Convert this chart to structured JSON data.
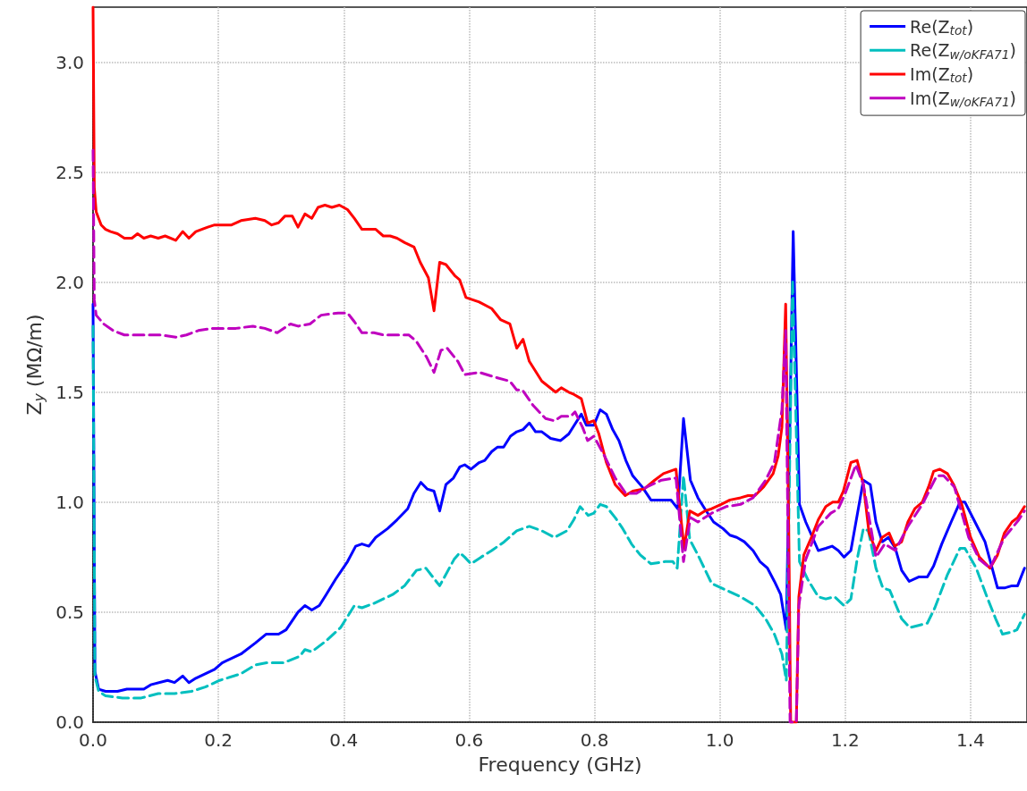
{
  "chart_data": {
    "type": "line",
    "xlabel": "Frequency (GHz)",
    "ylabel": "Z$_{y}$ (MΩ/m)",
    "xlim": [
      0,
      1.49
    ],
    "ylim": [
      0,
      3.25
    ],
    "xticks": [
      {
        "value": 0,
        "label": "0.0"
      },
      0.2,
      0.4,
      0.6,
      0.8,
      {
        "value": 1,
        "label": "1.0"
      },
      1.2,
      1.4
    ],
    "yticks": [
      {
        "value": 0,
        "label": "0.0"
      },
      0.5,
      {
        "value": 1,
        "label": "1.0"
      },
      1.5,
      {
        "value": 2,
        "label": "2.0"
      },
      2.5,
      {
        "value": 3,
        "label": "3.0"
      }
    ],
    "grid": true,
    "legend": "top right",
    "marker": "none",
    "series": [
      {
        "name": "Re(Z$_{tot}$)",
        "color": "#0000ff",
        "line_style": "solid",
        "x": [
          0,
          0.003,
          0.009,
          0.02,
          0.039,
          0.054,
          0.07,
          0.081,
          0.092,
          0.119,
          0.13,
          0.143,
          0.153,
          0.164,
          0.179,
          0.194,
          0.206,
          0.236,
          0.259,
          0.276,
          0.296,
          0.308,
          0.327,
          0.338,
          0.349,
          0.361,
          0.372,
          0.387,
          0.406,
          0.419,
          0.429,
          0.44,
          0.451,
          0.47,
          0.485,
          0.502,
          0.512,
          0.523,
          0.533,
          0.544,
          0.553,
          0.563,
          0.575,
          0.585,
          0.593,
          0.603,
          0.616,
          0.625,
          0.636,
          0.645,
          0.655,
          0.666,
          0.676,
          0.686,
          0.696,
          0.706,
          0.716,
          0.73,
          0.746,
          0.759,
          0.77,
          0.779,
          0.787,
          0.799,
          0.809,
          0.819,
          0.829,
          0.839,
          0.85,
          0.861,
          0.876,
          0.89,
          0.907,
          0.922,
          0.933,
          0.942,
          0.953,
          0.965,
          0.976,
          0.99,
          1.005,
          1.016,
          1.027,
          1.039,
          1.053,
          1.064,
          1.076,
          1.087,
          1.097,
          1.106,
          1.117,
          1.127,
          1.137,
          1.157,
          1.169,
          1.179,
          1.189,
          1.198,
          1.209,
          1.229,
          1.24,
          1.249,
          1.259,
          1.269,
          1.28,
          1.29,
          1.302,
          1.317,
          1.331,
          1.341,
          1.354,
          1.369,
          1.383,
          1.391,
          1.407,
          1.423,
          1.443,
          1.454,
          1.466,
          1.475,
          1.486
        ],
        "values": [
          1.9,
          0.23,
          0.15,
          0.14,
          0.14,
          0.15,
          0.15,
          0.15,
          0.17,
          0.19,
          0.18,
          0.21,
          0.18,
          0.2,
          0.22,
          0.24,
          0.27,
          0.31,
          0.36,
          0.4,
          0.4,
          0.42,
          0.5,
          0.53,
          0.51,
          0.53,
          0.58,
          0.65,
          0.73,
          0.8,
          0.81,
          0.8,
          0.84,
          0.88,
          0.92,
          0.97,
          1.04,
          1.09,
          1.06,
          1.05,
          0.96,
          1.08,
          1.11,
          1.16,
          1.17,
          1.15,
          1.18,
          1.19,
          1.23,
          1.25,
          1.25,
          1.3,
          1.32,
          1.33,
          1.36,
          1.32,
          1.32,
          1.29,
          1.28,
          1.31,
          1.36,
          1.4,
          1.35,
          1.35,
          1.42,
          1.4,
          1.33,
          1.28,
          1.19,
          1.12,
          1.07,
          1.01,
          1.01,
          1.01,
          0.97,
          1.38,
          1.1,
          1.02,
          0.97,
          0.91,
          0.88,
          0.85,
          0.84,
          0.82,
          0.78,
          0.73,
          0.7,
          0.64,
          0.58,
          0.42,
          2.23,
          0.99,
          0.91,
          0.78,
          0.79,
          0.8,
          0.78,
          0.75,
          0.78,
          1.1,
          1.08,
          0.91,
          0.82,
          0.84,
          0.79,
          0.69,
          0.64,
          0.66,
          0.66,
          0.71,
          0.81,
          0.91,
          1.0,
          1.0,
          0.91,
          0.82,
          0.61,
          0.61,
          0.62,
          0.62,
          0.7
        ]
      },
      {
        "name": "Re(Z$_{w/oKFA71}$)",
        "color": "#00bfbf",
        "line_style": "dashed",
        "x": [
          0,
          0.003,
          0.009,
          0.02,
          0.047,
          0.077,
          0.104,
          0.13,
          0.157,
          0.179,
          0.202,
          0.236,
          0.259,
          0.277,
          0.304,
          0.33,
          0.338,
          0.349,
          0.372,
          0.395,
          0.417,
          0.429,
          0.448,
          0.478,
          0.497,
          0.516,
          0.531,
          0.553,
          0.576,
          0.585,
          0.593,
          0.603,
          0.619,
          0.636,
          0.656,
          0.676,
          0.696,
          0.716,
          0.736,
          0.756,
          0.767,
          0.777,
          0.79,
          0.799,
          0.809,
          0.819,
          0.833,
          0.845,
          0.859,
          0.873,
          0.89,
          0.913,
          0.925,
          0.932,
          0.942,
          0.952,
          0.965,
          0.987,
          1.01,
          1.033,
          1.056,
          1.073,
          1.087,
          1.099,
          1.106,
          1.116,
          1.127,
          1.14,
          1.157,
          1.169,
          1.183,
          1.198,
          1.209,
          1.219,
          1.229,
          1.237,
          1.249,
          1.26,
          1.271,
          1.29,
          1.303,
          1.317,
          1.331,
          1.343,
          1.363,
          1.383,
          1.391,
          1.409,
          1.426,
          1.44,
          1.451,
          1.466,
          1.474,
          1.486
        ],
        "values": [
          1.8,
          0.21,
          0.14,
          0.12,
          0.11,
          0.11,
          0.13,
          0.13,
          0.14,
          0.16,
          0.19,
          0.22,
          0.26,
          0.27,
          0.27,
          0.3,
          0.33,
          0.32,
          0.37,
          0.43,
          0.53,
          0.52,
          0.54,
          0.58,
          0.62,
          0.69,
          0.7,
          0.62,
          0.74,
          0.77,
          0.75,
          0.72,
          0.75,
          0.78,
          0.82,
          0.87,
          0.89,
          0.87,
          0.84,
          0.87,
          0.92,
          0.98,
          0.94,
          0.95,
          0.99,
          0.98,
          0.93,
          0.88,
          0.81,
          0.76,
          0.72,
          0.73,
          0.73,
          0.7,
          1.12,
          0.83,
          0.76,
          0.63,
          0.6,
          0.57,
          0.53,
          0.47,
          0.4,
          0.31,
          0.19,
          2.01,
          0.73,
          0.65,
          0.57,
          0.56,
          0.57,
          0.53,
          0.56,
          0.74,
          0.88,
          0.87,
          0.7,
          0.61,
          0.6,
          0.47,
          0.43,
          0.44,
          0.45,
          0.52,
          0.67,
          0.79,
          0.79,
          0.7,
          0.57,
          0.47,
          0.4,
          0.41,
          0.42,
          0.49
        ]
      },
      {
        "name": "Im(Z$_{tot}$)",
        "color": "#ff0000",
        "line_style": "solid",
        "x": [
          0,
          0.002,
          0.005,
          0.013,
          0.02,
          0.028,
          0.039,
          0.05,
          0.062,
          0.071,
          0.081,
          0.092,
          0.104,
          0.115,
          0.132,
          0.143,
          0.153,
          0.164,
          0.183,
          0.194,
          0.209,
          0.221,
          0.236,
          0.259,
          0.274,
          0.285,
          0.296,
          0.306,
          0.318,
          0.327,
          0.338,
          0.349,
          0.359,
          0.37,
          0.381,
          0.393,
          0.406,
          0.417,
          0.429,
          0.44,
          0.451,
          0.463,
          0.474,
          0.485,
          0.497,
          0.512,
          0.522,
          0.535,
          0.544,
          0.553,
          0.563,
          0.577,
          0.585,
          0.595,
          0.616,
          0.636,
          0.65,
          0.665,
          0.676,
          0.686,
          0.696,
          0.716,
          0.738,
          0.747,
          0.759,
          0.767,
          0.779,
          0.789,
          0.799,
          0.807,
          0.819,
          0.833,
          0.849,
          0.861,
          0.879,
          0.896,
          0.91,
          0.93,
          0.933,
          0.943,
          0.952,
          0.965,
          0.976,
          0.987,
          1.002,
          1.016,
          1.033,
          1.045,
          1.056,
          1.07,
          1.085,
          1.093,
          1.099,
          1.105,
          1.11,
          1.113,
          1.122,
          1.126,
          1.134,
          1.146,
          1.157,
          1.169,
          1.18,
          1.189,
          1.197,
          1.209,
          1.219,
          1.229,
          1.238,
          1.249,
          1.259,
          1.27,
          1.279,
          1.29,
          1.3,
          1.311,
          1.323,
          1.333,
          1.341,
          1.351,
          1.363,
          1.373,
          1.386,
          1.4,
          1.414,
          1.431,
          1.443,
          1.454,
          1.466,
          1.475,
          1.486
        ],
        "values": [
          3.25,
          2.43,
          2.32,
          2.26,
          2.24,
          2.23,
          2.22,
          2.2,
          2.2,
          2.22,
          2.2,
          2.21,
          2.2,
          2.21,
          2.19,
          2.23,
          2.2,
          2.23,
          2.25,
          2.26,
          2.26,
          2.26,
          2.28,
          2.29,
          2.28,
          2.26,
          2.27,
          2.3,
          2.3,
          2.25,
          2.31,
          2.29,
          2.34,
          2.35,
          2.34,
          2.35,
          2.33,
          2.29,
          2.24,
          2.24,
          2.24,
          2.21,
          2.21,
          2.2,
          2.18,
          2.16,
          2.09,
          2.02,
          1.87,
          2.09,
          2.08,
          2.03,
          2.01,
          1.93,
          1.91,
          1.88,
          1.83,
          1.81,
          1.7,
          1.74,
          1.64,
          1.55,
          1.5,
          1.52,
          1.5,
          1.49,
          1.47,
          1.36,
          1.37,
          1.31,
          1.18,
          1.08,
          1.03,
          1.05,
          1.06,
          1.1,
          1.13,
          1.15,
          1.06,
          0.79,
          0.96,
          0.94,
          0.96,
          0.97,
          0.99,
          1.01,
          1.02,
          1.03,
          1.03,
          1.07,
          1.13,
          1.21,
          1.34,
          1.9,
          0.86,
          0,
          0,
          0.57,
          0.76,
          0.84,
          0.92,
          0.98,
          1.0,
          1.0,
          1.05,
          1.18,
          1.19,
          1.08,
          0.86,
          0.78,
          0.84,
          0.86,
          0.8,
          0.82,
          0.91,
          0.97,
          1.0,
          1.07,
          1.14,
          1.15,
          1.13,
          1.08,
          0.99,
          0.84,
          0.75,
          0.7,
          0.76,
          0.86,
          0.91,
          0.93,
          0.98
        ]
      },
      {
        "name": "Im(Z$_{w/oKFA71}$)",
        "color": "#bf00bf",
        "line_style": "dashed",
        "x": [
          0,
          0.002,
          0.005,
          0.017,
          0.032,
          0.05,
          0.07,
          0.107,
          0.132,
          0.149,
          0.168,
          0.191,
          0.209,
          0.228,
          0.255,
          0.274,
          0.294,
          0.315,
          0.327,
          0.346,
          0.364,
          0.391,
          0.406,
          0.417,
          0.429,
          0.448,
          0.463,
          0.485,
          0.504,
          0.516,
          0.532,
          0.544,
          0.555,
          0.565,
          0.582,
          0.593,
          0.616,
          0.639,
          0.665,
          0.676,
          0.685,
          0.702,
          0.722,
          0.736,
          0.747,
          0.762,
          0.769,
          0.781,
          0.789,
          0.799,
          0.816,
          0.833,
          0.85,
          0.867,
          0.884,
          0.907,
          0.93,
          0.942,
          0.953,
          0.965,
          0.987,
          1.01,
          1.033,
          1.053,
          1.073,
          1.087,
          1.099,
          1.105,
          1.112,
          1.122,
          1.126,
          1.137,
          1.157,
          1.177,
          1.189,
          1.2,
          1.217,
          1.229,
          1.249,
          1.263,
          1.28,
          1.3,
          1.323,
          1.346,
          1.357,
          1.374,
          1.397,
          1.414,
          1.431,
          1.454,
          1.477,
          1.486
        ],
        "values": [
          2.6,
          1.92,
          1.85,
          1.81,
          1.78,
          1.76,
          1.76,
          1.76,
          1.75,
          1.76,
          1.78,
          1.79,
          1.79,
          1.79,
          1.8,
          1.79,
          1.77,
          1.81,
          1.8,
          1.81,
          1.85,
          1.86,
          1.86,
          1.82,
          1.77,
          1.77,
          1.76,
          1.76,
          1.76,
          1.73,
          1.66,
          1.59,
          1.69,
          1.7,
          1.64,
          1.58,
          1.59,
          1.57,
          1.55,
          1.51,
          1.51,
          1.44,
          1.38,
          1.37,
          1.39,
          1.39,
          1.41,
          1.34,
          1.28,
          1.3,
          1.21,
          1.11,
          1.04,
          1.04,
          1.07,
          1.1,
          1.11,
          0.73,
          0.93,
          0.91,
          0.95,
          0.98,
          0.99,
          1.02,
          1.1,
          1.18,
          1.42,
          1.78,
          0,
          0,
          0.53,
          0.74,
          0.89,
          0.95,
          0.97,
          1.04,
          1.17,
          1.08,
          0.75,
          0.81,
          0.78,
          0.89,
          0.99,
          1.12,
          1.12,
          1.07,
          0.84,
          0.74,
          0.7,
          0.84,
          0.92,
          0.96
        ]
      }
    ]
  }
}
